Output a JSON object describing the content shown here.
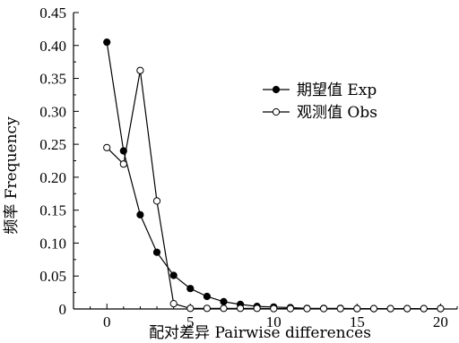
{
  "chart_data": {
    "type": "line",
    "xlabel": "配对差异 Pairwise differences",
    "ylabel": "频率 Frequency",
    "xlim": [
      -2,
      21
    ],
    "ylim": [
      0,
      0.45
    ],
    "x_ticks": [
      "0",
      "5",
      "10",
      "15",
      "20"
    ],
    "y_ticks": [
      "0",
      "0.05",
      "0.10",
      "0.15",
      "0.20",
      "0.25",
      "0.30",
      "0.35",
      "0.40",
      "0.45"
    ],
    "grid": false,
    "legend_position": "upper-right",
    "x": [
      0,
      1,
      2,
      3,
      4,
      5,
      6,
      7,
      8,
      9,
      10,
      11,
      12,
      13,
      14,
      15,
      16,
      17,
      18,
      19,
      20
    ],
    "series": [
      {
        "name": "期望值 Exp",
        "marker": "filled-circle",
        "values": [
          0.405,
          0.24,
          0.143,
          0.086,
          0.051,
          0.031,
          0.019,
          0.011,
          0.007,
          0.004,
          0.003,
          0.002,
          0.001,
          0.001,
          0.001,
          0.0005,
          0.0005,
          0.0005,
          0.0005,
          0.0005,
          0.0005
        ]
      },
      {
        "name": "观测值 Obs",
        "marker": "open-circle",
        "values": [
          0.245,
          0.22,
          0.362,
          0.164,
          0.008,
          0.001,
          0.001,
          0.001,
          0.001,
          0.001,
          0.0005,
          0.0005,
          0.0005,
          0.0005,
          0.0005,
          0.0005,
          0.0005,
          0.0005,
          0.0005,
          0.0005,
          0.0005
        ]
      }
    ]
  }
}
